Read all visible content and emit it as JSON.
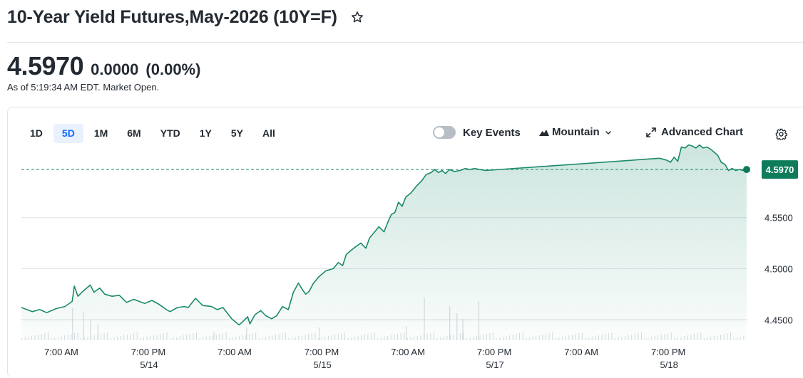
{
  "header": {
    "title": "10-Year Yield Futures,May-2026 (10Y=F)",
    "price": "4.5970",
    "change": "0.0000",
    "change_pct": "(0.00%)",
    "as_of": "As of 5:19:34 AM EDT. Market Open."
  },
  "toolbar": {
    "ranges": [
      "1D",
      "5D",
      "1M",
      "6M",
      "YTD",
      "1Y",
      "5Y",
      "All"
    ],
    "active_range": "5D",
    "key_events_label": "Key Events",
    "chart_type_label": "Mountain",
    "advanced_chart_label": "Advanced Chart",
    "icons": [
      "star-icon",
      "mountain-icon",
      "chevron-down-icon",
      "expand-icon",
      "gear-icon"
    ]
  },
  "colors": {
    "line": "#1b8a6b",
    "fill_top": "#cfe9e0",
    "accent": "#0f69ff",
    "price_badge": "#0e7c5a"
  },
  "chart_data": {
    "type": "area",
    "title": "",
    "xlabel": "",
    "ylabel": "",
    "current_value": 4.597,
    "current_label": "4.5970",
    "ylim": [
      4.43,
      4.6235
    ],
    "y_ticks": [
      4.55,
      4.5,
      4.45
    ],
    "y_tick_labels": [
      "4.5500",
      "4.5000",
      "4.4500"
    ],
    "x_ticks": [
      {
        "pos": 0.055,
        "label": "7:00 AM",
        "date": ""
      },
      {
        "pos": 0.175,
        "label": "7:00 PM",
        "date": "5/14"
      },
      {
        "pos": 0.294,
        "label": "7:00 AM",
        "date": ""
      },
      {
        "pos": 0.414,
        "label": "7:00 PM",
        "date": "5/15"
      },
      {
        "pos": 0.533,
        "label": "7:00 AM",
        "date": ""
      },
      {
        "pos": 0.652,
        "label": "7:00 PM",
        "date": "5/17"
      },
      {
        "pos": 0.772,
        "label": "7:00 AM",
        "date": ""
      },
      {
        "pos": 0.892,
        "label": "7:00 PM",
        "date": "5/18"
      }
    ],
    "series": [
      {
        "x": [
          0,
          0.015,
          0.025,
          0.035,
          0.048,
          0.06,
          0.07,
          0.073,
          0.078,
          0.085,
          0.095,
          0.1,
          0.108,
          0.115,
          0.125,
          0.135,
          0.145,
          0.155,
          0.17,
          0.18,
          0.19,
          0.2,
          0.205,
          0.215,
          0.225,
          0.23,
          0.24,
          0.25,
          0.262,
          0.27,
          0.278,
          0.29,
          0.3,
          0.305,
          0.312,
          0.315,
          0.322,
          0.33,
          0.337,
          0.345,
          0.352,
          0.36,
          0.368,
          0.375,
          0.382,
          0.387,
          0.392,
          0.397,
          0.402,
          0.41,
          0.42,
          0.43,
          0.437,
          0.443,
          0.448,
          0.453,
          0.46,
          0.468,
          0.475,
          0.48,
          0.487,
          0.493,
          0.5,
          0.505,
          0.51,
          0.515,
          0.52,
          0.525,
          0.53,
          0.537,
          0.545,
          0.552,
          0.558,
          0.565,
          0.57,
          0.575,
          0.58,
          0.585,
          0.59,
          0.597,
          0.605,
          0.612,
          0.618,
          0.625,
          0.632,
          0.64,
          0.64,
          0.88,
          0.885,
          0.89,
          0.895,
          0.9,
          0.905,
          0.91,
          0.915,
          0.92,
          0.925,
          0.93,
          0.935,
          0.94,
          0.945,
          0.95,
          0.955,
          0.96,
          0.965,
          0.97,
          0.975,
          0.98,
          0.985,
          0.99,
          0.995,
          1.0
        ],
        "values": [
          4.462,
          4.458,
          4.46,
          4.457,
          4.461,
          4.463,
          4.468,
          4.483,
          4.473,
          4.478,
          4.484,
          4.477,
          4.481,
          4.475,
          4.473,
          4.474,
          4.467,
          4.47,
          4.466,
          4.469,
          4.465,
          4.46,
          4.458,
          4.462,
          4.463,
          4.462,
          4.471,
          4.464,
          4.463,
          4.46,
          4.462,
          4.451,
          4.445,
          4.448,
          4.453,
          4.446,
          4.455,
          4.459,
          4.454,
          4.451,
          4.454,
          4.463,
          4.46,
          4.477,
          4.486,
          4.48,
          4.475,
          4.478,
          4.485,
          4.492,
          4.498,
          4.5,
          4.506,
          4.503,
          4.514,
          4.517,
          4.521,
          4.525,
          4.52,
          4.53,
          4.536,
          4.541,
          4.536,
          4.545,
          4.553,
          4.555,
          4.565,
          4.561,
          4.57,
          4.574,
          4.581,
          4.586,
          4.592,
          4.594,
          4.597,
          4.594,
          4.596,
          4.593,
          4.597,
          4.595,
          4.596,
          4.598,
          4.597,
          4.598,
          4.597,
          4.596,
          4.596,
          4.608,
          4.607,
          4.606,
          4.604,
          4.609,
          4.605,
          4.619,
          4.618,
          4.621,
          4.62,
          4.618,
          4.621,
          4.618,
          4.619,
          4.617,
          4.614,
          4.611,
          4.604,
          4.602,
          4.596,
          4.598,
          4.596,
          4.597,
          4.596,
          4.597
        ]
      }
    ],
    "volume_note": "volume bars along bottom"
  }
}
